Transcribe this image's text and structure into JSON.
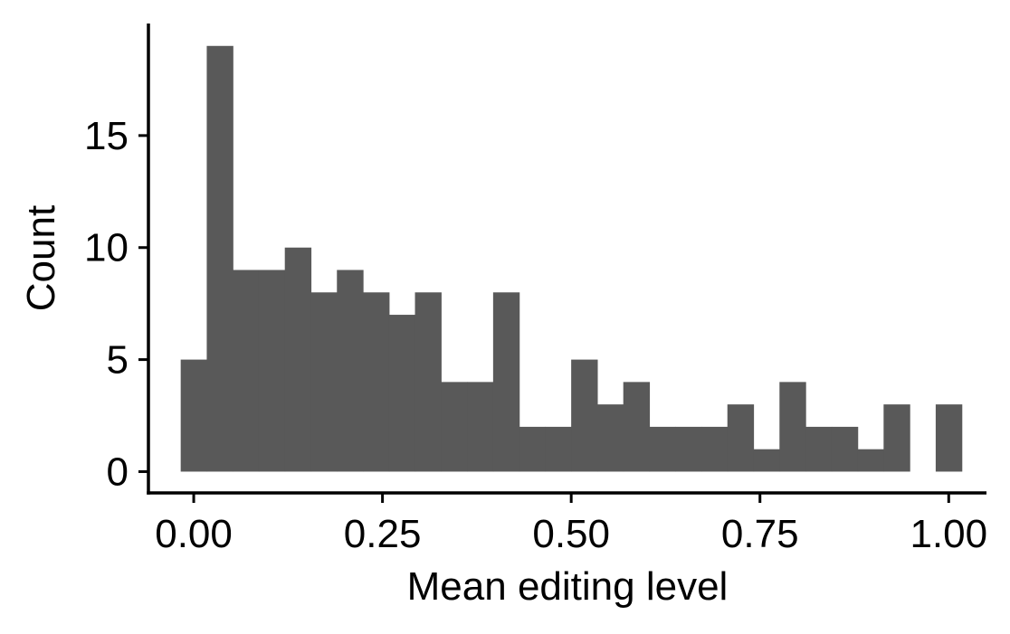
{
  "chart_data": {
    "type": "bar",
    "xlabel": "Mean editing level",
    "ylabel": "Count",
    "bar_color": "#595959",
    "bin_width": 0.0345,
    "x": [
      0.0,
      0.0345,
      0.069,
      0.1034,
      0.1379,
      0.1724,
      0.2069,
      0.2414,
      0.2759,
      0.3103,
      0.3448,
      0.3793,
      0.4138,
      0.4483,
      0.4828,
      0.5172,
      0.5517,
      0.5862,
      0.6207,
      0.6552,
      0.6897,
      0.7241,
      0.7586,
      0.7931,
      0.8276,
      0.8621,
      0.8966,
      0.931,
      0.9655,
      1.0
    ],
    "values": [
      5,
      19,
      9,
      9,
      10,
      8,
      9,
      8,
      7,
      8,
      4,
      4,
      8,
      2,
      2,
      5,
      3,
      4,
      2,
      2,
      2,
      3,
      1,
      4,
      2,
      2,
      1,
      3,
      0,
      3
    ],
    "xlim": [
      -0.06,
      1.05
    ],
    "ylim": [
      -0.95,
      20.0
    ],
    "x_ticks": [
      0.0,
      0.25,
      0.5,
      0.75,
      1.0
    ],
    "x_tick_labels": [
      "0.00",
      "0.25",
      "0.50",
      "0.75",
      "1.00"
    ],
    "y_ticks": [
      0,
      5,
      10,
      15
    ],
    "y_tick_labels": [
      "0",
      "5",
      "10",
      "15"
    ],
    "grid": false,
    "legend": "none"
  }
}
